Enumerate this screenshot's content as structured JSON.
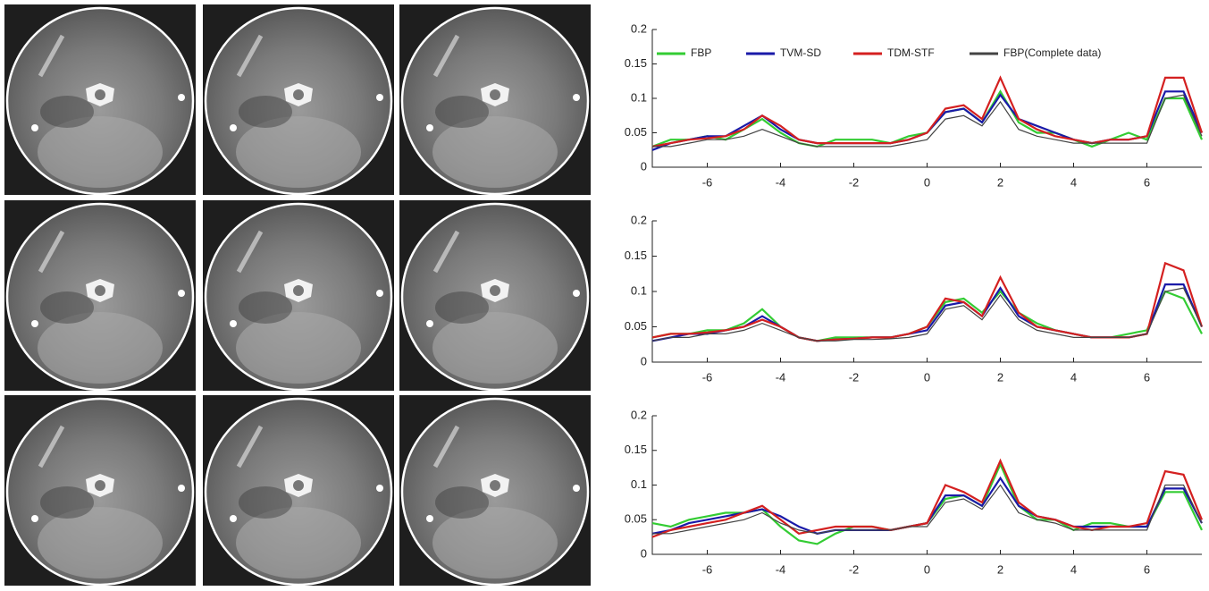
{
  "chart_data": [
    {
      "type": "line",
      "x": [
        -7.5,
        -7,
        -6.5,
        -6,
        -5.5,
        -5,
        -4.5,
        -4,
        -3.5,
        -3,
        -2.5,
        -2,
        -1.5,
        -1,
        -0.5,
        0,
        0.5,
        1,
        1.5,
        2,
        2.5,
        3,
        3.5,
        4,
        4.5,
        5,
        5.5,
        6,
        6.5,
        7,
        7.5
      ],
      "xlim": [
        -7.5,
        7.5
      ],
      "xticks": [
        -6,
        -4,
        -2,
        0,
        2,
        4,
        6
      ],
      "ylim": [
        0,
        0.2
      ],
      "yticks": [
        0,
        0.05,
        0.1,
        0.15,
        0.2
      ],
      "legend": "top",
      "series": [
        {
          "name": "FBP",
          "color": "#33cc33",
          "values": [
            0.03,
            0.04,
            0.04,
            0.045,
            0.04,
            0.055,
            0.07,
            0.05,
            0.035,
            0.03,
            0.04,
            0.04,
            0.04,
            0.035,
            0.045,
            0.05,
            0.08,
            0.085,
            0.065,
            0.11,
            0.065,
            0.05,
            0.05,
            0.04,
            0.03,
            0.04,
            0.05,
            0.04,
            0.1,
            0.1,
            0.04
          ]
        },
        {
          "name": "TVM-SD",
          "color": "#1a1aa8",
          "values": [
            0.025,
            0.035,
            0.04,
            0.045,
            0.045,
            0.06,
            0.075,
            0.055,
            0.04,
            0.035,
            0.035,
            0.035,
            0.035,
            0.035,
            0.04,
            0.05,
            0.08,
            0.085,
            0.065,
            0.105,
            0.07,
            0.06,
            0.05,
            0.04,
            0.035,
            0.04,
            0.04,
            0.045,
            0.11,
            0.11,
            0.05
          ]
        },
        {
          "name": "TDM-STF",
          "color": "#d42020",
          "values": [
            0.03,
            0.035,
            0.04,
            0.042,
            0.045,
            0.055,
            0.075,
            0.06,
            0.04,
            0.035,
            0.035,
            0.035,
            0.035,
            0.035,
            0.04,
            0.05,
            0.085,
            0.09,
            0.07,
            0.13,
            0.07,
            0.055,
            0.045,
            0.04,
            0.035,
            0.04,
            0.04,
            0.045,
            0.13,
            0.13,
            0.05
          ]
        },
        {
          "name": "FBP(Complete data)",
          "color": "#444444",
          "values": [
            0.03,
            0.03,
            0.035,
            0.04,
            0.04,
            0.045,
            0.055,
            0.045,
            0.035,
            0.03,
            0.03,
            0.03,
            0.03,
            0.03,
            0.035,
            0.04,
            0.07,
            0.075,
            0.06,
            0.095,
            0.055,
            0.045,
            0.04,
            0.035,
            0.035,
            0.035,
            0.035,
            0.035,
            0.1,
            0.105,
            0.045
          ]
        }
      ]
    },
    {
      "type": "line",
      "x": [
        -7.5,
        -7,
        -6.5,
        -6,
        -5.5,
        -5,
        -4.5,
        -4,
        -3.5,
        -3,
        -2.5,
        -2,
        -1.5,
        -1,
        -0.5,
        0,
        0.5,
        1,
        1.5,
        2,
        2.5,
        3,
        3.5,
        4,
        4.5,
        5,
        5.5,
        6,
        6.5,
        7,
        7.5
      ],
      "xlim": [
        -7.5,
        7.5
      ],
      "xticks": [
        -6,
        -4,
        -2,
        0,
        2,
        4,
        6
      ],
      "ylim": [
        0,
        0.2
      ],
      "yticks": [
        0,
        0.05,
        0.1,
        0.15,
        0.2
      ],
      "series": [
        {
          "color": "#33cc33",
          "values": [
            0.035,
            0.04,
            0.04,
            0.045,
            0.045,
            0.055,
            0.075,
            0.05,
            0.035,
            0.03,
            0.035,
            0.035,
            0.035,
            0.035,
            0.04,
            0.05,
            0.085,
            0.09,
            0.07,
            0.1,
            0.07,
            0.055,
            0.045,
            0.04,
            0.035,
            0.035,
            0.04,
            0.045,
            0.1,
            0.09,
            0.04
          ]
        },
        {
          "color": "#1a1aa8",
          "values": [
            0.03,
            0.035,
            0.04,
            0.04,
            0.045,
            0.05,
            0.065,
            0.05,
            0.035,
            0.03,
            0.032,
            0.033,
            0.035,
            0.035,
            0.04,
            0.045,
            0.08,
            0.085,
            0.065,
            0.105,
            0.065,
            0.05,
            0.045,
            0.04,
            0.035,
            0.035,
            0.035,
            0.04,
            0.11,
            0.11,
            0.05
          ]
        },
        {
          "color": "#d42020",
          "values": [
            0.035,
            0.04,
            0.04,
            0.042,
            0.045,
            0.05,
            0.06,
            0.05,
            0.035,
            0.03,
            0.032,
            0.033,
            0.035,
            0.035,
            0.04,
            0.05,
            0.09,
            0.085,
            0.065,
            0.12,
            0.07,
            0.05,
            0.045,
            0.04,
            0.035,
            0.035,
            0.035,
            0.04,
            0.14,
            0.13,
            0.05
          ]
        },
        {
          "color": "#444444",
          "values": [
            0.03,
            0.035,
            0.035,
            0.04,
            0.04,
            0.045,
            0.055,
            0.045,
            0.035,
            0.03,
            0.03,
            0.032,
            0.032,
            0.033,
            0.035,
            0.04,
            0.075,
            0.08,
            0.06,
            0.095,
            0.06,
            0.045,
            0.04,
            0.035,
            0.035,
            0.035,
            0.035,
            0.04,
            0.1,
            0.105,
            0.05
          ]
        }
      ]
    },
    {
      "type": "line",
      "x": [
        -7.5,
        -7,
        -6.5,
        -6,
        -5.5,
        -5,
        -4.5,
        -4,
        -3.5,
        -3,
        -2.5,
        -2,
        -1.5,
        -1,
        -0.5,
        0,
        0.5,
        1,
        1.5,
        2,
        2.5,
        3,
        3.5,
        4,
        4.5,
        5,
        5.5,
        6,
        6.5,
        7,
        7.5
      ],
      "xlim": [
        -7.5,
        7.5
      ],
      "xticks": [
        -6,
        -4,
        -2,
        0,
        2,
        4,
        6
      ],
      "ylim": [
        0,
        0.2
      ],
      "yticks": [
        0,
        0.05,
        0.1,
        0.15,
        0.2
      ],
      "series": [
        {
          "color": "#33cc33",
          "values": [
            0.045,
            0.04,
            0.05,
            0.055,
            0.06,
            0.06,
            0.065,
            0.04,
            0.02,
            0.015,
            0.03,
            0.04,
            0.04,
            0.035,
            0.04,
            0.045,
            0.08,
            0.085,
            0.07,
            0.13,
            0.07,
            0.05,
            0.05,
            0.035,
            0.045,
            0.045,
            0.04,
            0.04,
            0.09,
            0.09,
            0.035
          ]
        },
        {
          "color": "#1a1aa8",
          "values": [
            0.03,
            0.035,
            0.045,
            0.05,
            0.055,
            0.06,
            0.065,
            0.055,
            0.04,
            0.03,
            0.035,
            0.035,
            0.035,
            0.035,
            0.04,
            0.045,
            0.085,
            0.085,
            0.07,
            0.11,
            0.07,
            0.055,
            0.05,
            0.04,
            0.04,
            0.04,
            0.04,
            0.04,
            0.095,
            0.095,
            0.045
          ]
        },
        {
          "color": "#d42020",
          "values": [
            0.025,
            0.035,
            0.04,
            0.045,
            0.05,
            0.06,
            0.07,
            0.05,
            0.03,
            0.035,
            0.04,
            0.04,
            0.04,
            0.035,
            0.04,
            0.045,
            0.1,
            0.09,
            0.075,
            0.135,
            0.075,
            0.055,
            0.05,
            0.04,
            0.035,
            0.04,
            0.04,
            0.045,
            0.12,
            0.115,
            0.05
          ]
        },
        {
          "color": "#444444",
          "values": [
            0.03,
            0.03,
            0.035,
            0.04,
            0.045,
            0.05,
            0.06,
            0.045,
            0.035,
            0.03,
            0.035,
            0.035,
            0.035,
            0.035,
            0.04,
            0.04,
            0.075,
            0.08,
            0.065,
            0.1,
            0.06,
            0.05,
            0.045,
            0.035,
            0.035,
            0.035,
            0.035,
            0.035,
            0.1,
            0.1,
            0.045
          ]
        }
      ]
    }
  ]
}
